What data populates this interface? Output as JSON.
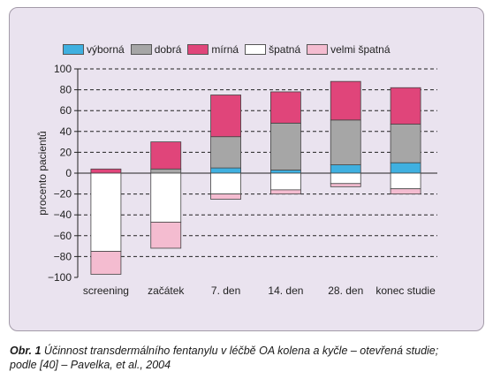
{
  "chart_data": {
    "type": "bar",
    "stacked": true,
    "categories": [
      "screening",
      "začátek",
      "7. den",
      "14. den",
      "28. den",
      "konec studie"
    ],
    "ylabel": "procento pacientů",
    "ylim": [
      -100,
      100
    ],
    "yticks": [
      100,
      80,
      60,
      40,
      20,
      0,
      -20,
      -40,
      -60,
      -80,
      -100
    ],
    "grid": "horizontal dashed",
    "legend_position": "top",
    "series": [
      {
        "name": "výborná",
        "color": "#3fb0e0",
        "values": [
          0,
          0,
          5,
          3,
          8,
          10
        ]
      },
      {
        "name": "dobrá",
        "color": "#a6a6a6",
        "values": [
          0,
          4,
          30,
          45,
          43,
          37
        ]
      },
      {
        "name": "mírná",
        "color": "#e0457a",
        "values": [
          4,
          26,
          40,
          30,
          37,
          35
        ]
      },
      {
        "name": "špatná",
        "color": "#ffffff",
        "values": [
          -75,
          -47,
          -20,
          -16,
          -10,
          -15
        ]
      },
      {
        "name": "velmi špatná",
        "color": "#f4bcd0",
        "values": [
          -22,
          -25,
          -5,
          -4,
          -3,
          -5
        ]
      }
    ]
  },
  "caption": {
    "label": "Obr. 1",
    "text": "Účinnost transdermálního fentanylu v léčbě OA kolena a kyčle – otevřená studie;",
    "text2": "podle [40] – Pavelka, et al., 2004"
  }
}
